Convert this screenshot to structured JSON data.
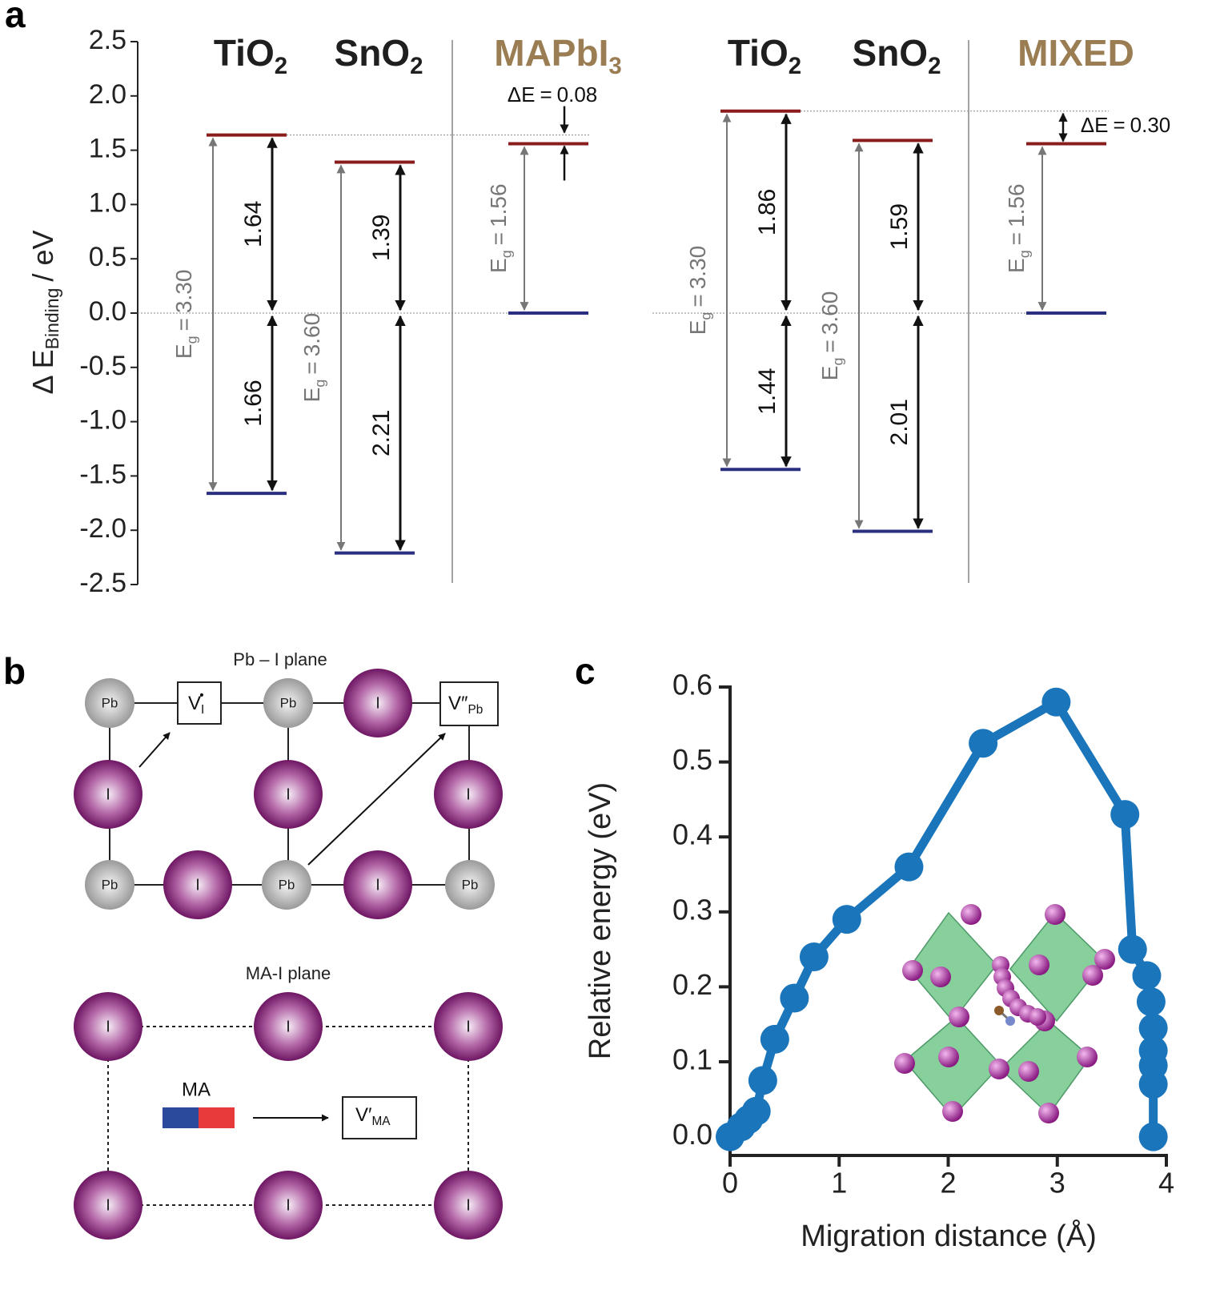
{
  "chart_data": [
    {
      "type": "energy_levels",
      "panel_label": "a",
      "ylabel": {
        "main": "Δ E",
        "sub": "Binding",
        "unit": "/ eV"
      },
      "ylim": [
        -2.5,
        2.5
      ],
      "yticks": [
        2.5,
        {
          "value": 2,
          "label": "2.0"
        },
        1.5,
        {
          "value": 1,
          "label": "1.0"
        },
        0.5,
        {
          "value": 0,
          "label": "0.0"
        },
        -0.5,
        {
          "value": -1,
          "label": "-1.0"
        },
        -1.5,
        {
          "value": -2,
          "label": "-2.0"
        },
        -2.5
      ],
      "eg_symbol": {
        "main": "E",
        "sub": "g"
      },
      "equals": "=",
      "delta_symbol": "ΔE",
      "groups": [
        {
          "oxides": [
            {
              "name": {
                "main": "TiO",
                "sub": "2"
              },
              "cb_offset": 1.64,
              "vb_offset": 1.66,
              "eg": {
                "value": 3.3,
                "label": "3.30"
              }
            },
            {
              "name": {
                "main": "SnO",
                "sub": "2"
              },
              "cb_offset": 1.39,
              "vb_offset": 2.21,
              "eg": {
                "value": 3.6,
                "label": "3.60"
              }
            }
          ],
          "absorber": {
            "name": {
              "main": "MAPbI",
              "sub": "3"
            },
            "eg": 1.56
          },
          "delta_e": 0.08
        },
        {
          "oxides": [
            {
              "name": {
                "main": "TiO",
                "sub": "2"
              },
              "cb_offset": 1.86,
              "vb_offset": 1.44,
              "eg": {
                "value": 3.3,
                "label": "3.30"
              }
            },
            {
              "name": {
                "main": "SnO",
                "sub": "2"
              },
              "cb_offset": 1.59,
              "vb_offset": 2.01,
              "eg": {
                "value": 3.6,
                "label": "3.60"
              }
            }
          ],
          "absorber": {
            "name": {
              "main": "MIXED"
            },
            "eg": 1.56
          },
          "delta_e": {
            "value": 0.3,
            "label": "0.30"
          }
        }
      ]
    },
    {
      "type": "line",
      "panel_label": "c",
      "xlabel": "Migration distance (Å)",
      "ylabel": "Relative energy (eV)",
      "color": "#1a75bb",
      "x": [
        0,
        0.1,
        0.17,
        0.24,
        0.3,
        0.41,
        0.59,
        0.77,
        1.07,
        1.64,
        2.32,
        2.99,
        3.62,
        3.69,
        3.82,
        3.86,
        3.88,
        3.88,
        3.88,
        3.88,
        3.88
      ],
      "values": [
        0,
        0.013,
        0.023,
        0.034,
        0.075,
        0.13,
        0.185,
        0.24,
        0.29,
        0.36,
        0.525,
        0.58,
        0.43,
        0.25,
        0.215,
        0.18,
        0.145,
        0.115,
        0.095,
        0.07,
        0
      ],
      "xlim": [
        0,
        4
      ],
      "ylim": [
        -0.025,
        0.6
      ],
      "xticks": [
        0,
        1,
        2,
        3,
        4
      ],
      "yticks": [
        {
          "value": 0,
          "label": "0.0"
        },
        0.1,
        0.2,
        0.3,
        0.4,
        0.5,
        0.6
      ]
    }
  ],
  "defect_diagram": {
    "panel_label": "b",
    "pb_i_plane": {
      "title": "Pb – I plane",
      "atoms": [
        "Pb",
        "Pb",
        "I",
        "I",
        "I",
        "I",
        "Pb",
        "I",
        "Pb",
        "I",
        "Pb"
      ],
      "vacancies": [
        {
          "main": "V",
          "sub": "I",
          "sup": "•"
        },
        {
          "main": "V″",
          "sub": "Pb"
        }
      ]
    },
    "ma_i_plane": {
      "title": "MA-I plane",
      "atoms": [
        "I",
        "I",
        "I",
        "I",
        "I",
        "I"
      ],
      "cation": "MA",
      "vacancy": {
        "main": "V′",
        "sub": "MA"
      }
    }
  }
}
